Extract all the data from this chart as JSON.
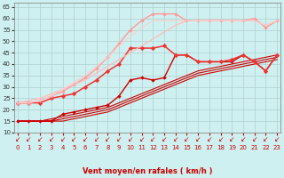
{
  "xlabel": "Vent moyen/en rafales ( km/h )",
  "background_color": "#cff0f0",
  "grid_color": "#b0d0d0",
  "x_ticks": [
    0,
    1,
    2,
    3,
    4,
    5,
    6,
    7,
    8,
    9,
    10,
    11,
    12,
    13,
    14,
    15,
    16,
    17,
    18,
    19,
    20,
    21,
    22,
    23
  ],
  "ylim": [
    10,
    67
  ],
  "xlim": [
    -0.3,
    23.3
  ],
  "yticks": [
    10,
    15,
    20,
    25,
    30,
    35,
    40,
    45,
    50,
    55,
    60,
    65
  ],
  "series": [
    {
      "x": [
        0,
        1,
        2,
        3,
        4,
        5,
        6,
        7,
        8,
        9,
        10,
        11,
        12,
        13,
        14,
        15,
        16,
        17,
        18,
        19,
        20,
        21,
        22,
        23
      ],
      "y": [
        15,
        15,
        15,
        15,
        15,
        16,
        17,
        18,
        19,
        21,
        23,
        25,
        27,
        29,
        31,
        33,
        35,
        36,
        37,
        38,
        39,
        40,
        41,
        42
      ],
      "color": "#cc0000",
      "lw": 0.8,
      "marker": null,
      "ms": 0
    },
    {
      "x": [
        0,
        1,
        2,
        3,
        4,
        5,
        6,
        7,
        8,
        9,
        10,
        11,
        12,
        13,
        14,
        15,
        16,
        17,
        18,
        19,
        20,
        21,
        22,
        23
      ],
      "y": [
        15,
        15,
        15,
        15,
        16,
        17,
        18,
        19,
        20,
        22,
        24,
        26,
        28,
        30,
        32,
        34,
        36,
        37,
        38,
        39,
        40,
        41,
        42,
        43
      ],
      "color": "#cc0000",
      "lw": 0.8,
      "marker": null,
      "ms": 0
    },
    {
      "x": [
        0,
        1,
        2,
        3,
        4,
        5,
        6,
        7,
        8,
        9,
        10,
        11,
        12,
        13,
        14,
        15,
        16,
        17,
        18,
        19,
        20,
        21,
        22,
        23
      ],
      "y": [
        15,
        15,
        15,
        16,
        17,
        18,
        19,
        20,
        21,
        23,
        25,
        27,
        29,
        31,
        33,
        35,
        37,
        38,
        39,
        40,
        41,
        42,
        43,
        44
      ],
      "color": "#cc0000",
      "lw": 0.8,
      "marker": null,
      "ms": 0
    },
    {
      "x": [
        0,
        1,
        2,
        3,
        4,
        5,
        6,
        7,
        8,
        9,
        10,
        11,
        12,
        13,
        14,
        15,
        16,
        17,
        18,
        19,
        20,
        21,
        22,
        23
      ],
      "y": [
        15,
        15,
        15,
        15,
        18,
        19,
        20,
        21,
        22,
        26,
        33,
        34,
        33,
        34,
        44,
        44,
        41,
        41,
        41,
        41,
        44,
        41,
        37,
        44
      ],
      "color": "#cc0000",
      "lw": 1.0,
      "marker": "D",
      "ms": 2.0
    },
    {
      "x": [
        0,
        1,
        2,
        3,
        4,
        5,
        6,
        7,
        8,
        9,
        10,
        11,
        12,
        13,
        14,
        15,
        16,
        17,
        18,
        19,
        20,
        21,
        22,
        23
      ],
      "y": [
        23,
        23,
        23,
        25,
        26,
        27,
        30,
        33,
        37,
        40,
        47,
        47,
        47,
        48,
        44,
        44,
        41,
        41,
        41,
        42,
        44,
        41,
        37,
        44
      ],
      "color": "#ee3333",
      "lw": 1.1,
      "marker": "D",
      "ms": 2.5
    },
    {
      "x": [
        0,
        1,
        2,
        3,
        4,
        5,
        6,
        7,
        8,
        9,
        10,
        11,
        12,
        13,
        14,
        15,
        16,
        17,
        18,
        19,
        20,
        21,
        22,
        23
      ],
      "y": [
        23,
        23,
        24,
        26,
        28,
        31,
        34,
        38,
        43,
        49,
        55,
        59,
        62,
        62,
        62,
        59,
        59,
        59,
        59,
        59,
        59,
        60,
        56,
        59
      ],
      "color": "#ff9999",
      "lw": 1.0,
      "marker": "D",
      "ms": 2.0
    },
    {
      "x": [
        0,
        1,
        2,
        3,
        4,
        5,
        6,
        7,
        8,
        9,
        10,
        11,
        12,
        13,
        14,
        15,
        16,
        17,
        18,
        19,
        20,
        21,
        22,
        23
      ],
      "y": [
        23,
        24,
        25,
        27,
        29,
        31,
        33,
        36,
        39,
        42,
        45,
        48,
        51,
        54,
        57,
        59,
        59,
        59,
        59,
        59,
        59,
        59,
        57,
        59
      ],
      "color": "#ffbbbb",
      "lw": 0.9,
      "marker": null,
      "ms": 0
    },
    {
      "x": [
        0,
        1,
        2,
        3,
        4,
        5,
        6,
        7,
        8,
        9,
        10,
        11,
        12,
        13,
        14,
        15,
        16,
        17,
        18,
        19,
        20,
        21,
        22,
        23
      ],
      "y": [
        23,
        23,
        24,
        26,
        29,
        32,
        35,
        39,
        43,
        48,
        52,
        56,
        59,
        59,
        59,
        59,
        59,
        59,
        59,
        59,
        59,
        59,
        57,
        59
      ],
      "color": "#ffcccc",
      "lw": 0.8,
      "marker": null,
      "ms": 0
    }
  ],
  "arrow_color": "#cc0000",
  "xlabel_color": "#cc0000",
  "tick_color": "#cc0000",
  "ytick_color": "#333333"
}
